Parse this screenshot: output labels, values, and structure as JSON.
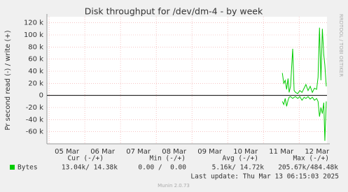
{
  "chart_data": {
    "type": "line",
    "title": "Disk throughput for /dev/dm-4 - by week",
    "y_label": "Pr second read (-) / write (+)",
    "watermark": "RRDTOOL / TOBI OETIKER",
    "ylim": [
      -80000,
      130000
    ],
    "yticks": [
      {
        "value": -60000,
        "label": "-60 k"
      },
      {
        "value": -40000,
        "label": "-40 k"
      },
      {
        "value": -20000,
        "label": "-20 k"
      },
      0,
      {
        "value": 20000,
        "label": "20 k"
      },
      {
        "value": 40000,
        "label": "40 k"
      },
      {
        "value": 60000,
        "label": "60 k"
      },
      {
        "value": 80000,
        "label": "80 k"
      },
      {
        "value": 100000,
        "label": "100 k"
      },
      {
        "value": 120000,
        "label": "120 k"
      }
    ],
    "xlim": [
      4.94,
      12.78
    ],
    "xticks": [
      {
        "value": 5.5,
        "label": "05 Mar"
      },
      {
        "value": 6.5,
        "label": "06 Mar"
      },
      {
        "value": 7.5,
        "label": "07 Mar"
      },
      {
        "value": 8.5,
        "label": "08 Mar"
      },
      {
        "value": 9.5,
        "label": "09 Mar"
      },
      {
        "value": 10.5,
        "label": "10 Mar"
      },
      {
        "value": 11.5,
        "label": "11 Mar"
      },
      {
        "value": 12.5,
        "label": "12 Mar"
      }
    ],
    "xgrid": [
      5,
      6,
      7,
      8,
      9,
      10,
      11,
      12
    ],
    "grid": true,
    "x": [
      11.53,
      11.57,
      11.61,
      11.65,
      11.69,
      11.72,
      11.76,
      11.82,
      11.86,
      11.9,
      11.96,
      12.02,
      12.08,
      12.14,
      12.19,
      12.25,
      12.31,
      12.37,
      12.43,
      12.49,
      12.53,
      12.57,
      12.61,
      12.65,
      12.69,
      12.72,
      12.76
    ],
    "series": [
      {
        "name": "Bytes",
        "color": "#00cc00",
        "values": [
          37000,
          20000,
          25000,
          10000,
          28000,
          5000,
          15000,
          77000,
          8000,
          5000,
          3000,
          8000,
          5000,
          12000,
          18000,
          8000,
          15000,
          5000,
          12000,
          10000,
          30000,
          112000,
          25000,
          110000,
          67000,
          50000,
          15000
        ],
        "read_values": [
          -10000,
          -15000,
          -5000,
          -18000,
          -8000,
          -3000,
          -2000,
          -5000,
          -3000,
          -2000,
          -5000,
          -2000,
          -8000,
          -3000,
          -5000,
          -2000,
          -6000,
          -3000,
          -8000,
          -5000,
          -10000,
          -35000,
          -20000,
          -30000,
          -12000,
          -75000,
          -10000
        ]
      }
    ],
    "summary": {
      "headers": [
        "Cur (-/+)",
        "Min (-/+)",
        "Avg (-/+)",
        "Max (-/+)"
      ],
      "cells": [
        "13.04k/ 14.38k",
        "0.00 /  0.00",
        "5.16k/ 14.72k",
        "205.67k/484.48k"
      ]
    },
    "last_update": "Last update: Thu Mar 13 06:15:03 2025",
    "footer": "Munin 2.0.73"
  }
}
